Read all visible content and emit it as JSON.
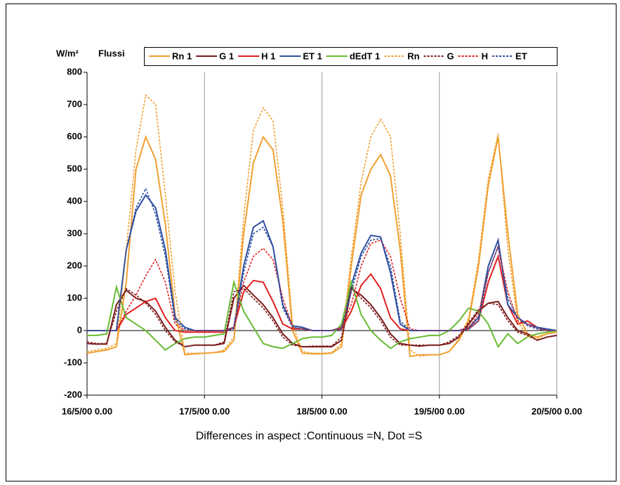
{
  "chart_data": {
    "type": "line",
    "ylabel": "W/m²",
    "title": "Flussi",
    "xlabel": "Differences in aspect :Continuous =N, Dot =S",
    "x": [
      0,
      2,
      4,
      6,
      8,
      10,
      12,
      14,
      16,
      18,
      20,
      22,
      24,
      26,
      28,
      30,
      32,
      34,
      36,
      38,
      40,
      42,
      44,
      46,
      48,
      50,
      52,
      54,
      56,
      58,
      60,
      62,
      64,
      66,
      68,
      70,
      72,
      74,
      76,
      78,
      80,
      82,
      84,
      86,
      88,
      90,
      92,
      94,
      96
    ],
    "xlim": [
      0,
      96
    ],
    "xticks": [
      {
        "value": 0,
        "label": "16/5/00 0.00"
      },
      {
        "value": 24,
        "label": "17/5/00 0.00"
      },
      {
        "value": 48,
        "label": "18/5/00 0.00"
      },
      {
        "value": 72,
        "label": "19/5/00 0.00"
      },
      {
        "value": 96,
        "label": "20/5/00 0.00"
      }
    ],
    "ylim": [
      -200,
      800
    ],
    "yticks": [
      -200,
      -100,
      0,
      100,
      200,
      300,
      400,
      500,
      600,
      700,
      800
    ],
    "grid": "x",
    "legend": "top",
    "series": [
      {
        "name": "Rn 1",
        "color": "#f0a030",
        "dash": false,
        "values": [
          -70,
          -65,
          -60,
          -50,
          150,
          500,
          600,
          530,
          330,
          50,
          -75,
          -72,
          -70,
          -68,
          -65,
          -30,
          300,
          520,
          600,
          560,
          340,
          0,
          -70,
          -72,
          -72,
          -70,
          -50,
          200,
          420,
          500,
          545,
          480,
          250,
          -80,
          -75,
          -75,
          -75,
          -65,
          -30,
          30,
          200,
          450,
          600,
          300,
          50,
          -10,
          -20,
          -10,
          -5
        ]
      },
      {
        "name": "G 1",
        "color": "#7b1c1c",
        "dash": false,
        "values": [
          -40,
          -42,
          -42,
          80,
          125,
          100,
          90,
          60,
          10,
          -30,
          -50,
          -45,
          -45,
          -45,
          -40,
          100,
          140,
          110,
          80,
          40,
          -10,
          -40,
          -50,
          -50,
          -50,
          -50,
          -30,
          130,
          110,
          80,
          40,
          -10,
          -40,
          -45,
          -48,
          -45,
          -45,
          -40,
          -20,
          20,
          60,
          85,
          90,
          40,
          0,
          -10,
          -30,
          -20,
          -15
        ]
      },
      {
        "name": "H 1",
        "color": "#e02020",
        "dash": false,
        "values": [
          0,
          0,
          0,
          0,
          50,
          70,
          90,
          100,
          40,
          0,
          -5,
          -5,
          -5,
          -5,
          -5,
          10,
          120,
          155,
          150,
          90,
          20,
          5,
          5,
          0,
          0,
          0,
          5,
          60,
          140,
          175,
          130,
          40,
          5,
          0,
          0,
          0,
          0,
          0,
          0,
          5,
          30,
          150,
          230,
          80,
          20,
          30,
          10,
          0,
          0
        ]
      },
      {
        "name": "ET 1",
        "color": "#2f4fa0",
        "dash": false,
        "values": [
          0,
          0,
          0,
          0,
          250,
          370,
          420,
          380,
          250,
          40,
          10,
          0,
          0,
          0,
          0,
          10,
          200,
          320,
          340,
          260,
          80,
          15,
          10,
          0,
          0,
          0,
          10,
          140,
          240,
          295,
          290,
          180,
          20,
          0,
          0,
          0,
          0,
          0,
          0,
          10,
          40,
          200,
          280,
          80,
          40,
          20,
          10,
          5,
          0
        ]
      },
      {
        "name": "dEdT 1",
        "color": "#66bb33",
        "dash": false,
        "values": [
          -15,
          -15,
          -10,
          135,
          40,
          20,
          0,
          -30,
          -60,
          -40,
          -25,
          -20,
          -20,
          -15,
          -10,
          150,
          60,
          10,
          -40,
          -50,
          -55,
          -40,
          -25,
          -20,
          -20,
          -15,
          20,
          150,
          50,
          0,
          -30,
          -55,
          -35,
          -25,
          -20,
          -15,
          -15,
          0,
          30,
          70,
          60,
          20,
          -50,
          -10,
          -40,
          -20,
          -10,
          -5,
          0
        ]
      },
      {
        "name": "Rn",
        "color": "#f0a030",
        "dash": true,
        "values": [
          -65,
          -60,
          -55,
          -40,
          250,
          560,
          730,
          700,
          420,
          120,
          -70,
          -70,
          -70,
          -68,
          -60,
          -20,
          350,
          620,
          690,
          650,
          380,
          20,
          -65,
          -70,
          -70,
          -68,
          -40,
          230,
          460,
          600,
          655,
          600,
          300,
          -60,
          -80,
          -75,
          -75,
          -65,
          -25,
          40,
          220,
          470,
          610,
          250,
          30,
          -20,
          -25,
          -10,
          -5
        ]
      },
      {
        "name": "G",
        "color": "#7b1c1c",
        "dash": true,
        "values": [
          -35,
          -40,
          -40,
          60,
          130,
          110,
          85,
          50,
          0,
          -35,
          -50,
          -45,
          -45,
          -45,
          -35,
          120,
          130,
          100,
          70,
          30,
          -20,
          -45,
          -50,
          -48,
          -48,
          -48,
          -20,
          135,
          100,
          70,
          30,
          -20,
          -45,
          -45,
          -45,
          -45,
          -45,
          -35,
          -15,
          25,
          65,
          85,
          80,
          30,
          -5,
          -15,
          -30,
          -20,
          -15
        ]
      },
      {
        "name": "H",
        "color": "#e02020",
        "dash": true,
        "values": [
          0,
          0,
          0,
          0,
          60,
          110,
          170,
          220,
          150,
          20,
          0,
          0,
          0,
          0,
          0,
          10,
          150,
          230,
          255,
          220,
          100,
          10,
          5,
          0,
          0,
          0,
          10,
          80,
          200,
          270,
          280,
          230,
          100,
          5,
          0,
          0,
          0,
          0,
          0,
          10,
          50,
          180,
          260,
          120,
          30,
          20,
          5,
          0,
          0
        ]
      },
      {
        "name": "ET",
        "color": "#2f4fa0",
        "dash": true,
        "values": [
          0,
          0,
          0,
          0,
          250,
          380,
          440,
          360,
          230,
          30,
          5,
          0,
          0,
          0,
          0,
          5,
          180,
          300,
          320,
          260,
          70,
          10,
          5,
          0,
          0,
          0,
          5,
          120,
          230,
          280,
          285,
          200,
          30,
          0,
          0,
          0,
          0,
          0,
          0,
          5,
          30,
          180,
          260,
          100,
          40,
          15,
          5,
          0,
          0
        ]
      }
    ]
  }
}
